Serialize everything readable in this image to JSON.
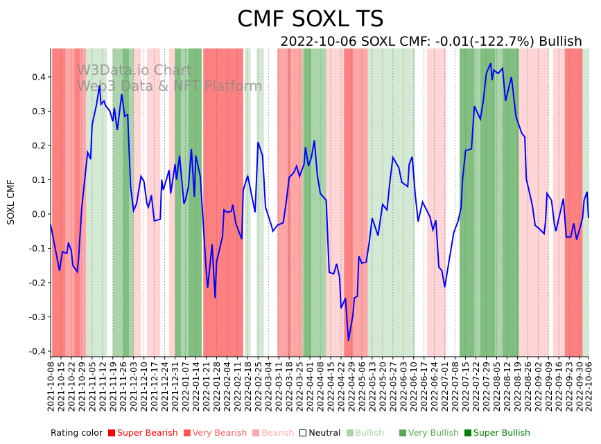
{
  "chart_data": {
    "type": "line",
    "title": "CMF SOXL TS",
    "subtitle": "2022-10-06 SOXL CMF: -0.01(-122.7%) Bullish",
    "ylabel": "SOXL CMF",
    "xlabel": "",
    "ylim": [
      -0.41,
      0.48
    ],
    "xlim_days": [
      0,
      363
    ],
    "start_date": "2021-10-08",
    "yticks": [
      "-0.4",
      "-0.3",
      "-0.2",
      "-0.1",
      "0.0",
      "0.1",
      "0.2",
      "0.3",
      "0.4"
    ],
    "xticks": [
      "2021-10-08",
      "2021-10-15",
      "2021-10-22",
      "2021-10-29",
      "2021-11-05",
      "2021-11-12",
      "2021-11-19",
      "2021-11-26",
      "2021-12-03",
      "2021-12-10",
      "2021-12-17",
      "2021-12-24",
      "2021-12-31",
      "2022-01-07",
      "2022-01-14",
      "2022-01-21",
      "2022-01-28",
      "2022-02-04",
      "2022-02-11",
      "2022-02-18",
      "2022-02-25",
      "2022-03-04",
      "2022-03-11",
      "2022-03-18",
      "2022-03-25",
      "2022-04-01",
      "2022-04-08",
      "2022-04-15",
      "2022-04-22",
      "2022-04-29",
      "2022-05-06",
      "2022-05-13",
      "2022-05-20",
      "2022-05-27",
      "2022-06-03",
      "2022-06-10",
      "2022-06-17",
      "2022-06-24",
      "2022-07-01",
      "2022-07-08",
      "2022-07-15",
      "2022-07-22",
      "2022-07-29",
      "2022-08-05",
      "2022-08-12",
      "2022-08-19",
      "2022-08-26",
      "2022-09-02",
      "2022-09-09",
      "2022-09-16",
      "2022-09-23",
      "2022-09-30",
      "2022-10-06"
    ],
    "series": [
      {
        "name": "SOXL CMF",
        "color": "#0000ff",
        "points": [
          [
            0,
            -0.03
          ],
          [
            6,
            -0.165
          ],
          [
            8,
            -0.11
          ],
          [
            11,
            -0.115
          ],
          [
            12,
            -0.083
          ],
          [
            14,
            -0.107
          ],
          [
            15,
            -0.15
          ],
          [
            18,
            -0.168
          ],
          [
            19,
            -0.123
          ],
          [
            21,
            0.018
          ],
          [
            25,
            0.18
          ],
          [
            27,
            0.16
          ],
          [
            28,
            0.26
          ],
          [
            31,
            0.32
          ],
          [
            33,
            0.375
          ],
          [
            34,
            0.32
          ],
          [
            36,
            0.33
          ],
          [
            37,
            0.317
          ],
          [
            40,
            0.3
          ],
          [
            42,
            0.27
          ],
          [
            43,
            0.31
          ],
          [
            45,
            0.245
          ],
          [
            48,
            0.35
          ],
          [
            50,
            0.285
          ],
          [
            52,
            0.29
          ],
          [
            54,
            0.08
          ],
          [
            56,
            0.01
          ],
          [
            58,
            0.03
          ],
          [
            61,
            0.11
          ],
          [
            63,
            0.095
          ],
          [
            65,
            0.03
          ],
          [
            66,
            0.02
          ],
          [
            68,
            0.055
          ],
          [
            70,
            -0.02
          ],
          [
            74,
            -0.015
          ],
          [
            75,
            0.1
          ],
          [
            76,
            0.07
          ],
          [
            80,
            0.128
          ],
          [
            81,
            0.06
          ],
          [
            84,
            0.145
          ],
          [
            85,
            0.1
          ],
          [
            87,
            0.17
          ],
          [
            90,
            0.03
          ],
          [
            91,
            0.04
          ],
          [
            93,
            0.08
          ],
          [
            95,
            0.19
          ],
          [
            97,
            0.05
          ],
          [
            98,
            0.17
          ],
          [
            101,
            0.11
          ],
          [
            105,
            -0.165
          ],
          [
            106,
            -0.215
          ],
          [
            109,
            -0.088
          ],
          [
            111,
            -0.245
          ],
          [
            112,
            -0.14
          ],
          [
            116,
            -0.065
          ],
          [
            117,
            0.012
          ],
          [
            119,
            0.005
          ],
          [
            122,
            0.008
          ],
          [
            123,
            0.027
          ],
          [
            125,
            -0.028
          ],
          [
            129,
            -0.073
          ],
          [
            130,
            0.07
          ],
          [
            133,
            0.112
          ],
          [
            138,
            0.005
          ],
          [
            140,
            0.21
          ],
          [
            143,
            0.17
          ],
          [
            144,
            0.1
          ],
          [
            145,
            0.02
          ],
          [
            149,
            -0.033
          ],
          [
            150,
            -0.05
          ],
          [
            153,
            -0.033
          ],
          [
            157,
            -0.025
          ],
          [
            159,
            0.035
          ],
          [
            161,
            0.107
          ],
          [
            164,
            0.12
          ],
          [
            166,
            0.14
          ],
          [
            168,
            0.11
          ],
          [
            171,
            0.145
          ],
          [
            172,
            0.195
          ],
          [
            174,
            0.14
          ],
          [
            176,
            0.165
          ],
          [
            178,
            0.215
          ],
          [
            180,
            0.113
          ],
          [
            182,
            0.06
          ],
          [
            186,
            0.04
          ],
          [
            188,
            -0.17
          ],
          [
            191,
            -0.175
          ],
          [
            193,
            -0.145
          ],
          [
            195,
            -0.185
          ],
          [
            196,
            -0.275
          ],
          [
            199,
            -0.245
          ],
          [
            201,
            -0.37
          ],
          [
            204,
            -0.295
          ],
          [
            205,
            -0.245
          ],
          [
            207,
            -0.24
          ],
          [
            208,
            -0.123
          ],
          [
            210,
            -0.143
          ],
          [
            213,
            -0.14
          ],
          [
            215,
            -0.083
          ],
          [
            217,
            -0.012
          ],
          [
            221,
            -0.063
          ],
          [
            224,
            0.028
          ],
          [
            227,
            0.012
          ],
          [
            229,
            0.095
          ],
          [
            231,
            0.165
          ],
          [
            235,
            0.135
          ],
          [
            237,
            0.093
          ],
          [
            241,
            0.08
          ],
          [
            242,
            0.145
          ],
          [
            244,
            0.167
          ],
          [
            246,
            0.06
          ],
          [
            248,
            -0.022
          ],
          [
            251,
            0.035
          ],
          [
            256,
            -0.008
          ],
          [
            258,
            -0.046
          ],
          [
            260,
            -0.018
          ],
          [
            262,
            -0.155
          ],
          [
            264,
            -0.165
          ],
          [
            266,
            -0.213
          ],
          [
            272,
            -0.055
          ],
          [
            275,
            -0.02
          ],
          [
            277,
            0.018
          ],
          [
            278,
            0.1
          ],
          [
            280,
            0.185
          ],
          [
            284,
            0.19
          ],
          [
            286,
            0.315
          ],
          [
            290,
            0.277
          ],
          [
            292,
            0.33
          ],
          [
            294,
            0.41
          ],
          [
            297,
            0.44
          ],
          [
            298,
            0.39
          ],
          [
            299,
            0.42
          ],
          [
            302,
            0.41
          ],
          [
            305,
            0.425
          ],
          [
            307,
            0.33
          ],
          [
            311,
            0.4
          ],
          [
            314,
            0.285
          ],
          [
            318,
            0.235
          ],
          [
            320,
            0.225
          ],
          [
            321,
            0.103
          ],
          [
            325,
            0.027
          ],
          [
            327,
            -0.033
          ],
          [
            329,
            -0.04
          ],
          [
            333,
            -0.057
          ],
          [
            334,
            -0.022
          ],
          [
            335,
            0.06
          ],
          [
            338,
            0.04
          ],
          [
            340,
            -0.03
          ],
          [
            341,
            -0.05
          ],
          [
            346,
            0.045
          ],
          [
            348,
            -0.067
          ],
          [
            351,
            -0.067
          ],
          [
            353,
            -0.027
          ],
          [
            355,
            -0.075
          ],
          [
            359,
            -0.012
          ],
          [
            360,
            0.04
          ],
          [
            362,
            0.065
          ],
          [
            363,
            -0.012
          ]
        ]
      }
    ],
    "rating_bands": [
      [
        1,
        10,
        "super_bearish"
      ],
      [
        10,
        16,
        "very_bearish"
      ],
      [
        16,
        20,
        "super_bearish"
      ],
      [
        20,
        24,
        "very_bearish"
      ],
      [
        24,
        38,
        "bullish"
      ],
      [
        42,
        49,
        "very_bullish"
      ],
      [
        49,
        53,
        "super_bullish"
      ],
      [
        53,
        56,
        "very_bullish"
      ],
      [
        56,
        61,
        "bearish"
      ],
      [
        65,
        74,
        "bearish"
      ],
      [
        80,
        84,
        "bearish"
      ],
      [
        84,
        88,
        "super_bullish"
      ],
      [
        88,
        93,
        "very_bullish"
      ],
      [
        93,
        102,
        "super_bullish"
      ],
      [
        103,
        116,
        "super_bearish"
      ],
      [
        116,
        130,
        "super_bearish"
      ],
      [
        131,
        135,
        "bullish"
      ],
      [
        139,
        144,
        "bullish"
      ],
      [
        153,
        160,
        "very_bearish"
      ],
      [
        160,
        162,
        "super_bearish"
      ],
      [
        162,
        170,
        "very_bearish"
      ],
      [
        170,
        171,
        "very_bullish"
      ],
      [
        171,
        176,
        "super_bullish"
      ],
      [
        176,
        186,
        "very_bullish"
      ],
      [
        186,
        198,
        "bearish"
      ],
      [
        198,
        204,
        "super_bearish"
      ],
      [
        204,
        214,
        "very_bearish"
      ],
      [
        214,
        246,
        "bullish"
      ],
      [
        254,
        267,
        "bearish"
      ],
      [
        276,
        286,
        "super_bullish"
      ],
      [
        286,
        290,
        "very_bullish"
      ],
      [
        290,
        300,
        "super_bullish"
      ],
      [
        300,
        305,
        "very_bullish"
      ],
      [
        305,
        316,
        "super_bullish"
      ],
      [
        316,
        336,
        "bearish"
      ],
      [
        339,
        347,
        "bearish"
      ],
      [
        347,
        359,
        "super_bearish"
      ],
      [
        359,
        363,
        "bullish"
      ]
    ],
    "legend": {
      "title": "Rating color",
      "items": [
        {
          "key": "super_bearish",
          "label": "Super Bearish",
          "color": "#ff0000",
          "fill": "#ff8080"
        },
        {
          "key": "very_bearish",
          "label": "Very Bearish",
          "color": "#ff5555",
          "fill": "#ffa6a6"
        },
        {
          "key": "bearish",
          "label": "Bearish",
          "color": "#ffaaaa",
          "fill": "#ffd5d5"
        },
        {
          "key": "neutral",
          "label": "Neutral",
          "color": "#000000",
          "fill": "#ffffff"
        },
        {
          "key": "bullish",
          "label": "Bullish",
          "color": "#aad4aa",
          "fill": "#d4e9d4"
        },
        {
          "key": "very_bullish",
          "label": "Very Bullish",
          "color": "#55aa55",
          "fill": "#aad4aa"
        },
        {
          "key": "super_bullish",
          "label": "Super Bullish",
          "color": "#008000",
          "fill": "#80bf80"
        }
      ]
    },
    "watermark": [
      "W3Data.io Chart",
      "Web3 Data & NFT Platform"
    ]
  }
}
